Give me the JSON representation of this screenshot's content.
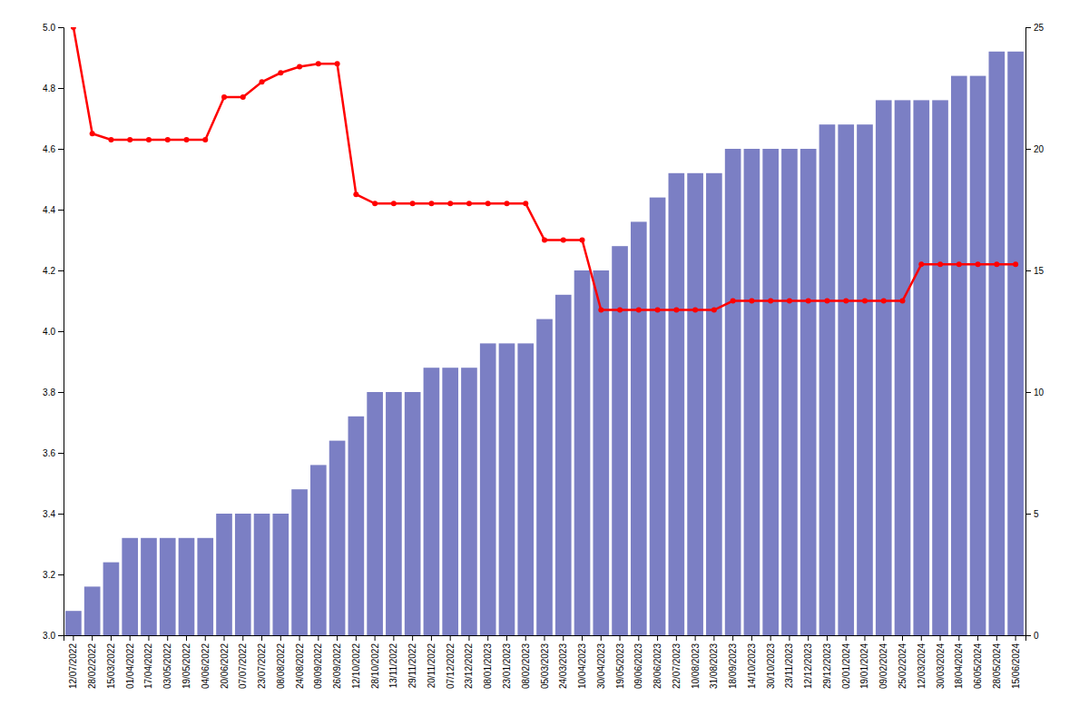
{
  "chart_data": {
    "type": "bar",
    "categories": [
      "12/07/2022",
      "28/02/2022",
      "15/03/2022",
      "01/04/2022",
      "17/04/2022",
      "03/05/2022",
      "19/05/2022",
      "04/06/2022",
      "20/06/2022",
      "07/07/2022",
      "23/07/2022",
      "08/08/2022",
      "24/08/2022",
      "09/09/2022",
      "26/09/2022",
      "12/10/2022",
      "28/10/2022",
      "13/11/2022",
      "29/11/2022",
      "20/11/2022",
      "07/12/2022",
      "23/12/2022",
      "08/01/2023",
      "23/01/2023",
      "08/02/2023",
      "05/03/2023",
      "24/03/2023",
      "10/04/2023",
      "30/04/2023",
      "19/05/2023",
      "09/06/2023",
      "28/06/2023",
      "22/07/2023",
      "10/08/2023",
      "31/08/2023",
      "18/09/2023",
      "14/10/2023",
      "30/10/2023",
      "23/11/2023",
      "12/12/2023",
      "29/12/2023",
      "02/01/2024",
      "19/01/2024",
      "09/02/2024",
      "25/02/2024",
      "12/03/2024",
      "30/03/2024",
      "18/04/2024",
      "06/05/2024",
      "28/05/2024",
      "15/06/2024"
    ],
    "series": [
      {
        "type": "bar",
        "axis": "y2",
        "color": "#7b7fc4",
        "values": [
          1,
          2,
          3,
          4,
          4,
          4,
          4,
          4,
          5,
          5,
          5,
          5,
          6,
          7,
          8,
          9,
          10,
          10,
          10,
          11,
          11,
          11,
          12,
          12,
          12,
          13,
          14,
          15,
          15,
          16,
          17,
          18,
          19,
          19,
          19,
          20,
          20,
          20,
          20,
          20,
          21,
          21,
          21,
          22,
          22,
          22,
          22,
          23,
          23,
          24,
          24
        ]
      },
      {
        "type": "line",
        "color": "#ff0000",
        "marker": "circle",
        "values": [
          5.0,
          4.65,
          4.63,
          4.63,
          4.63,
          4.63,
          4.63,
          4.63,
          4.77,
          4.77,
          4.82,
          4.85,
          4.87,
          4.88,
          4.88,
          4.45,
          4.42,
          4.42,
          4.42,
          4.42,
          4.42,
          4.42,
          4.42,
          4.42,
          4.42,
          4.3,
          4.3,
          4.3,
          4.07,
          4.07,
          4.07,
          4.07,
          4.07,
          4.07,
          4.07,
          4.1,
          4.1,
          4.1,
          4.1,
          4.1,
          4.1,
          4.1,
          4.1,
          4.1,
          4.1,
          4.22,
          4.22,
          4.22,
          4.22,
          4.22,
          4.22
        ]
      }
    ],
    "ylim": [
      3.0,
      5.0
    ],
    "yticks": [
      {
        "value": 3.0,
        "label": "3.0"
      },
      3.2,
      3.4,
      3.6,
      3.8,
      {
        "value": 4.0,
        "label": "4.0"
      },
      4.2,
      4.4,
      4.6,
      4.8,
      {
        "value": 5.0,
        "label": "5.0"
      }
    ],
    "y2lim": [
      0,
      25
    ],
    "y2ticks": [
      0,
      5,
      10,
      15,
      20,
      25
    ],
    "grid": false
  }
}
